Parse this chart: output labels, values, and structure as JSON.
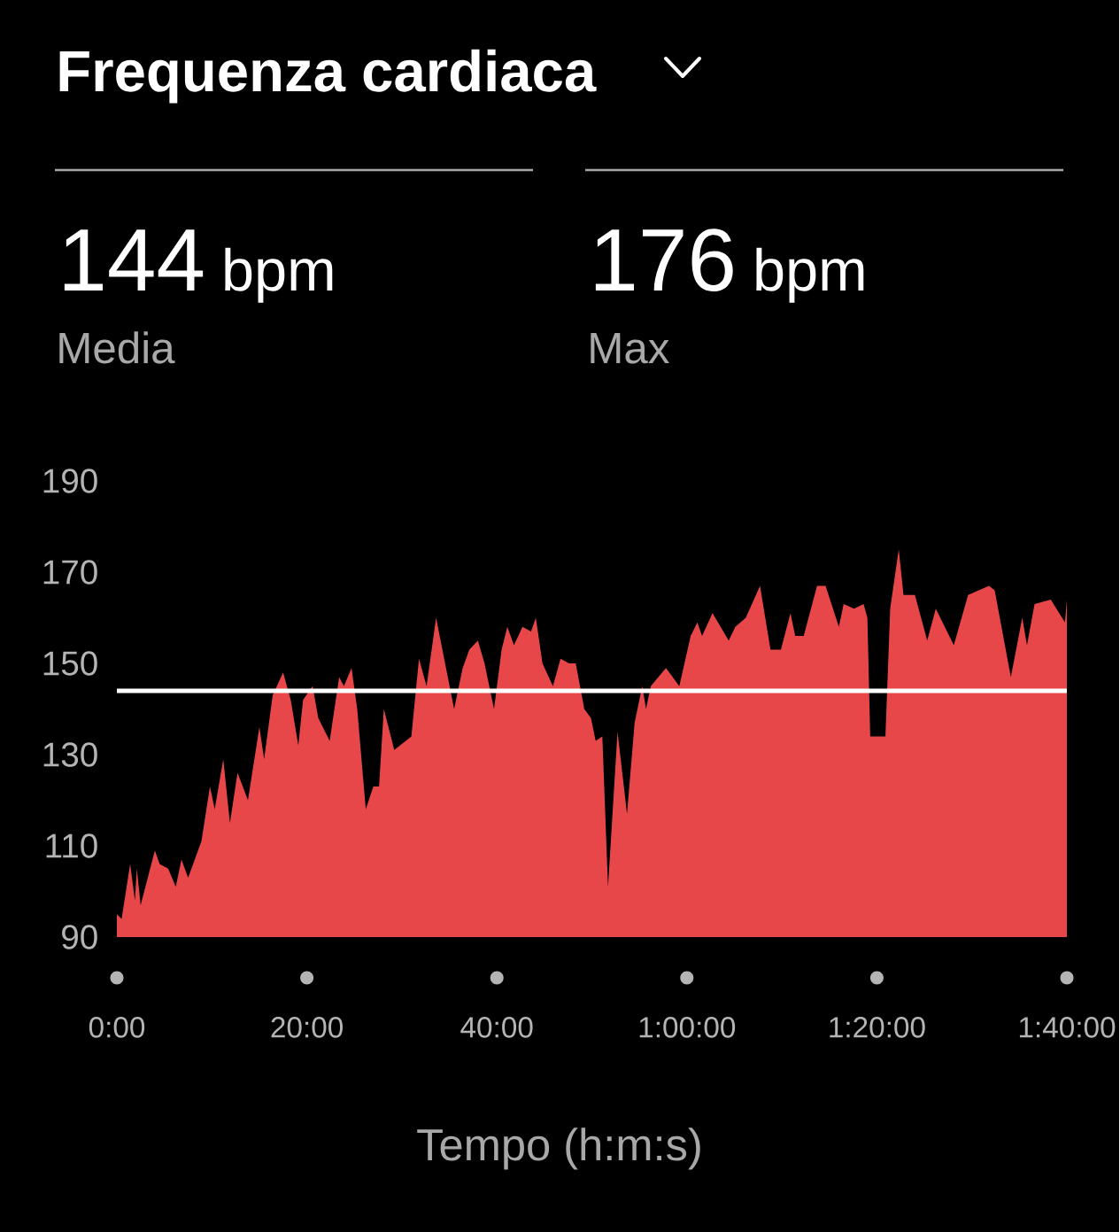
{
  "chart_data": {
    "type": "area",
    "title": "Frequenza cardiaca",
    "xlabel": "Tempo (h:m:s)",
    "annotations": [
      "144",
      "bpm",
      "Media",
      "176",
      "bpm",
      "Max"
    ],
    "x": [
      0,
      0.5,
      1.4,
      1.9,
      2.1,
      2.5,
      4.0,
      4.5,
      5.4,
      6.2,
      6.8,
      7.5,
      8.9,
      9.8,
      10.3,
      11.2,
      11.9,
      12.7,
      13.8,
      15.0,
      15.5,
      16.4,
      17.5,
      18.3,
      19.1,
      19.6,
      20.6,
      21.2,
      22.4,
      23.4,
      23.9,
      24.7,
      25.3,
      26.2,
      27.0,
      27.6,
      28.1,
      29.2,
      31.0,
      31.8,
      32.6,
      33.6,
      35.5,
      36.4,
      37.1,
      38.0,
      38.7,
      39.7,
      40.5,
      41.1,
      41.8,
      42.7,
      43.6,
      44.1,
      44.8,
      45.9,
      46.7,
      47.6,
      48.3,
      49.2,
      49.9,
      50.4,
      51.1,
      51.7,
      52.7,
      53.7,
      54.5,
      55.3,
      55.7,
      56.2,
      57.8,
      59.2,
      60.4,
      61.1,
      61.6,
      62.7,
      64.4,
      65.1,
      66.2,
      67.7,
      68.8,
      69.9,
      70.9,
      71.4,
      72.3,
      73.7,
      74.6,
      76.0,
      76.5,
      77.6,
      78.6,
      79.0,
      79.3,
      80.9,
      81.4,
      82.3,
      82.8,
      84.0,
      85.3,
      86.2,
      88.1,
      89.6,
      91.8,
      92.4,
      94.1,
      95.3,
      95.8,
      96.6,
      98.3,
      99.8,
      100
    ],
    "values": [
      95,
      94,
      106,
      98,
      105,
      97,
      109,
      106,
      105,
      101,
      107,
      103,
      111,
      123,
      118,
      129,
      115,
      126,
      120,
      136,
      129,
      143,
      148,
      142,
      132,
      142,
      145,
      138,
      133,
      147,
      145,
      149,
      140,
      118,
      123,
      123,
      140,
      131,
      134,
      151,
      145,
      160,
      140,
      149,
      153,
      155,
      150,
      140,
      153,
      158,
      154,
      158,
      157,
      160,
      150,
      145,
      151,
      150,
      150,
      140,
      138,
      133,
      134,
      101,
      135,
      117,
      137,
      145,
      140,
      145,
      149,
      145,
      156,
      159,
      156,
      161,
      155,
      158,
      160,
      167,
      153,
      153,
      161,
      156,
      156,
      167,
      167,
      158,
      163,
      162,
      163,
      160,
      134,
      134,
      162,
      175,
      165,
      165,
      155,
      162,
      154,
      165,
      167,
      166,
      147,
      160,
      154,
      163,
      164,
      159,
      164
    ],
    "color": "#e8474a",
    "xlim": [
      0,
      100
    ],
    "ylim": [
      90,
      190
    ],
    "xticks": [
      {
        "value": 0,
        "label": "0:00"
      },
      {
        "value": 20,
        "label": "20:00"
      },
      {
        "value": 40,
        "label": "40:00"
      },
      {
        "value": 60,
        "label": "1:00:00"
      },
      {
        "value": 80,
        "label": "1:20:00"
      },
      {
        "value": 100,
        "label": "1:40:00"
      }
    ],
    "yticks": [
      90,
      110,
      130,
      150,
      170,
      190
    ],
    "ref_lines": [
      {
        "axis": "y",
        "value": 144,
        "color": "#ffffff"
      }
    ]
  }
}
